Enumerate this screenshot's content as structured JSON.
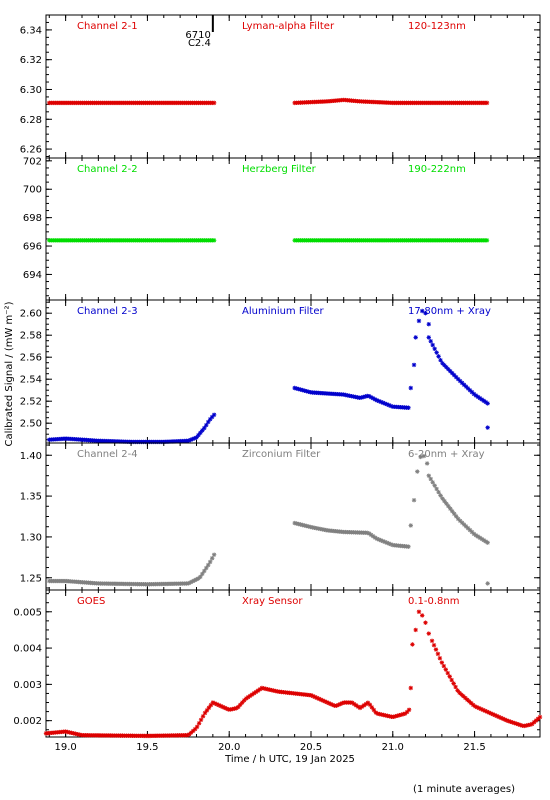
{
  "chart_data": {
    "type": "scatter",
    "shared_xlabel": "Time / h UTC, 19 Jan 2025",
    "shared_ylabel": "Calibrated Signal / (mW m⁻²)",
    "footnote": "(1 minute averages)",
    "xlim": [
      18.88,
      21.9
    ],
    "xticks": [
      "19.0",
      "19.5",
      "20.0",
      "20.5",
      "21.0",
      "21.5"
    ],
    "event_marker": {
      "x": 19.9,
      "labels": [
        "6710",
        "C2.4"
      ]
    },
    "panels": [
      {
        "channel": "Channel 2-1",
        "filter": "Lyman-alpha Filter",
        "band": "120-123nm",
        "color": "#dd0000",
        "ylim": [
          6.254,
          6.35
        ],
        "yticks": [
          "6.26",
          "6.28",
          "6.30",
          "6.32",
          "6.34"
        ],
        "segments": [
          [
            [
              18.9,
              6.291
            ],
            [
              19.91,
              6.291
            ]
          ],
          [
            [
              20.4,
              6.291
            ],
            [
              20.6,
              6.292
            ],
            [
              20.7,
              6.293
            ],
            [
              20.8,
              6.292
            ],
            [
              21.0,
              6.291
            ],
            [
              21.58,
              6.291
            ]
          ]
        ],
        "scatter": []
      },
      {
        "channel": "Channel 2-2",
        "filter": "Herzberg Filter",
        "band": "190-222nm",
        "color": "#00dd00",
        "ylim": [
          692.2,
          702.2
        ],
        "yticks": [
          "694",
          "696",
          "698",
          "700",
          "702"
        ],
        "segments": [
          [
            [
              18.9,
              696.4
            ],
            [
              19.91,
              696.4
            ]
          ],
          [
            [
              20.4,
              696.4
            ],
            [
              21.58,
              696.4
            ]
          ]
        ],
        "scatter": []
      },
      {
        "channel": "Channel 2-3",
        "filter": "Aluminium Filter",
        "band": "17-80nm + Xray",
        "color": "#0000cc",
        "ylim": [
          2.482,
          2.612
        ],
        "yticks": [
          "2.50",
          "2.52",
          "2.54",
          "2.56",
          "2.58",
          "2.60"
        ],
        "segments": [
          [
            [
              18.9,
              2.485
            ],
            [
              19.0,
              2.486
            ],
            [
              19.1,
              2.485
            ],
            [
              19.2,
              2.484
            ],
            [
              19.4,
              2.483
            ],
            [
              19.6,
              2.483
            ],
            [
              19.75,
              2.484
            ],
            [
              19.8,
              2.487
            ],
            [
              19.85,
              2.496
            ],
            [
              19.88,
              2.503
            ],
            [
              19.91,
              2.508
            ]
          ],
          [
            [
              20.4,
              2.532
            ],
            [
              20.5,
              2.528
            ],
            [
              20.6,
              2.527
            ],
            [
              20.7,
              2.526
            ],
            [
              20.8,
              2.523
            ],
            [
              20.85,
              2.525
            ],
            [
              20.9,
              2.521
            ],
            [
              20.95,
              2.518
            ],
            [
              21.0,
              2.515
            ],
            [
              21.1,
              2.514
            ]
          ],
          [
            [
              21.22,
              2.578
            ],
            [
              21.3,
              2.555
            ],
            [
              21.4,
              2.54
            ],
            [
              21.5,
              2.526
            ],
            [
              21.58,
              2.518
            ]
          ]
        ],
        "scatter": [
          [
            21.11,
            2.532
          ],
          [
            21.13,
            2.553
          ],
          [
            21.14,
            2.578
          ],
          [
            21.16,
            2.593
          ],
          [
            21.18,
            2.602
          ],
          [
            21.2,
            2.6
          ],
          [
            21.22,
            2.59
          ],
          [
            21.58,
            2.496
          ]
        ]
      },
      {
        "channel": "Channel 2-4",
        "filter": "Zirconium Filter",
        "band": "6-20nm + Xray",
        "color": "#808080",
        "ylim": [
          1.235,
          1.415
        ],
        "yticks": [
          "1.25",
          "1.30",
          "1.35",
          "1.40"
        ],
        "segments": [
          [
            [
              18.9,
              1.246
            ],
            [
              19.0,
              1.246
            ],
            [
              19.2,
              1.243
            ],
            [
              19.5,
              1.242
            ],
            [
              19.75,
              1.243
            ],
            [
              19.82,
              1.25
            ],
            [
              19.88,
              1.268
            ],
            [
              19.91,
              1.279
            ]
          ],
          [
            [
              20.4,
              1.317
            ],
            [
              20.5,
              1.312
            ],
            [
              20.6,
              1.308
            ],
            [
              20.7,
              1.306
            ],
            [
              20.85,
              1.305
            ],
            [
              20.9,
              1.298
            ],
            [
              21.0,
              1.29
            ],
            [
              21.1,
              1.288
            ]
          ],
          [
            [
              21.22,
              1.375
            ],
            [
              21.3,
              1.348
            ],
            [
              21.4,
              1.322
            ],
            [
              21.5,
              1.303
            ],
            [
              21.58,
              1.293
            ]
          ]
        ],
        "scatter": [
          [
            21.11,
            1.314
          ],
          [
            21.13,
            1.345
          ],
          [
            21.15,
            1.38
          ],
          [
            21.17,
            1.398
          ],
          [
            21.19,
            1.399
          ],
          [
            21.21,
            1.39
          ],
          [
            21.58,
            1.243
          ]
        ]
      },
      {
        "channel": "GOES",
        "filter": "Xray Sensor",
        "band": "0.1-0.8nm",
        "color": "#dd0000",
        "ylim": [
          0.00155,
          0.0056
        ],
        "yticks": [
          "0.002",
          "0.003",
          "0.004",
          "0.005"
        ],
        "segments": [
          [
            [
              18.88,
              0.00165
            ],
            [
              19.0,
              0.0017
            ],
            [
              19.1,
              0.0016
            ],
            [
              19.5,
              0.00158
            ],
            [
              19.75,
              0.0016
            ],
            [
              19.8,
              0.0018
            ],
            [
              19.85,
              0.0022
            ],
            [
              19.9,
              0.0025
            ],
            [
              19.95,
              0.0024
            ],
            [
              20.0,
              0.0023
            ],
            [
              20.05,
              0.00235
            ],
            [
              20.1,
              0.0026
            ],
            [
              20.2,
              0.0029
            ],
            [
              20.3,
              0.0028
            ],
            [
              20.4,
              0.00275
            ],
            [
              20.5,
              0.0027
            ],
            [
              20.6,
              0.0025
            ],
            [
              20.65,
              0.0024
            ],
            [
              20.7,
              0.0025
            ],
            [
              20.75,
              0.0025
            ],
            [
              20.8,
              0.00235
            ],
            [
              20.85,
              0.0025
            ],
            [
              20.9,
              0.0022
            ],
            [
              21.0,
              0.0021
            ],
            [
              21.08,
              0.0022
            ],
            [
              21.1,
              0.0023
            ]
          ],
          [
            [
              21.24,
              0.0042
            ],
            [
              21.3,
              0.0036
            ],
            [
              21.4,
              0.0028
            ],
            [
              21.5,
              0.0024
            ],
            [
              21.6,
              0.0022
            ],
            [
              21.7,
              0.002
            ],
            [
              21.8,
              0.00185
            ],
            [
              21.85,
              0.0019
            ],
            [
              21.9,
              0.0021
            ]
          ]
        ],
        "scatter": [
          [
            21.11,
            0.0029
          ],
          [
            21.12,
            0.0041
          ],
          [
            21.14,
            0.0045
          ],
          [
            21.16,
            0.005
          ],
          [
            21.18,
            0.0049
          ],
          [
            21.2,
            0.0047
          ],
          [
            21.22,
            0.0044
          ]
        ]
      }
    ]
  }
}
